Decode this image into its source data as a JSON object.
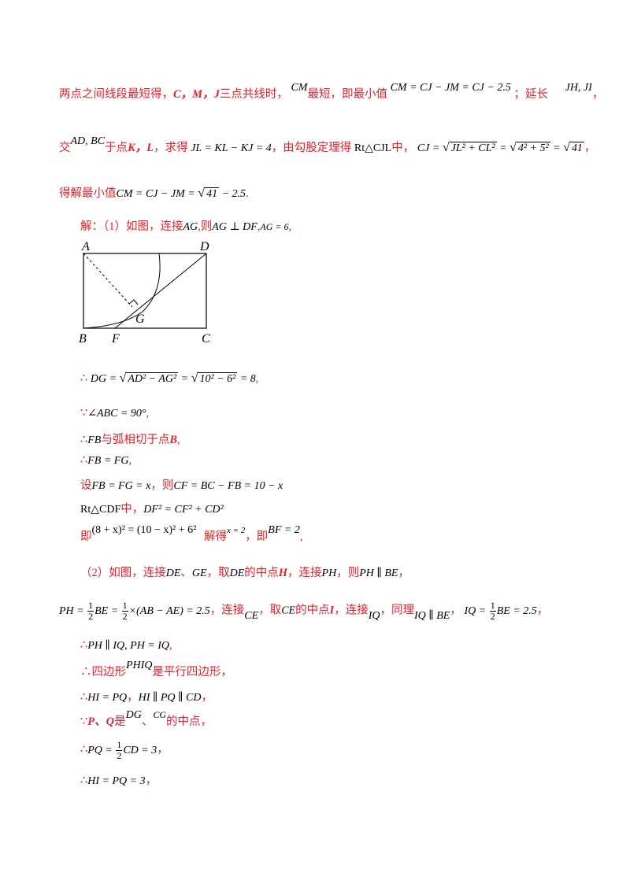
{
  "para1": {
    "line1": {
      "a": "两点之间线段最短得，",
      "b": "C，M，J",
      "c": "三点共线时，",
      "cm": "CM",
      "d": "最短，即最小值",
      "eq": "CM = CJ − JM = CJ − 2.5",
      "e": "；延长",
      "jh": "JH, JI",
      "f": "，"
    },
    "line2": {
      "a": "交",
      "adbc": "AD, BC",
      "b": "于点",
      "kl": "K，L",
      "c": "，求得",
      "eq1": "JL = KL − KJ = 4",
      "d": "，由勾股定理得",
      "rt": "Rt△CJL",
      "e": "中，",
      "eq2a": "CJ = ",
      "r1": "JL² + CL²",
      "eq2b": " = ",
      "r2": "4² + 5²",
      "eq2c": " = ",
      "r3": "41",
      "f": "，"
    },
    "line3": {
      "a": "得解最小值",
      "eq_a": "CM = CJ − JM = ",
      "r": "41",
      "eq_b": " − 2.5",
      "b": "."
    }
  },
  "solution": {
    "s1": {
      "a": "解：（1）如图，连接",
      "ag": "AG",
      "b": ",则",
      "perp": "AG ⊥ DF",
      "c": ",",
      "ag6": "AG = 6",
      "d": ","
    },
    "s2": {
      "therefore": "∴",
      "eq_a": "DG = ",
      "r1": "AD² − AG²",
      "eq_b": " = ",
      "r2": "10² − 6²",
      "eq_c": " = 8",
      "b": ","
    },
    "s3": {
      "because": "∵",
      "eq": "∠ABC = 90°",
      "b": ","
    },
    "s4": {
      "therefore": "∴",
      "fb": "FB",
      "a": "与弧相切于点",
      "b": "B",
      "c": ","
    },
    "s5": {
      "therefore": "∴",
      "eq": "FB = FG",
      "b": ","
    },
    "s6": {
      "a": "设",
      "eq1": "FB = FG = x",
      "b": "，则",
      "eq2": "CF = BC − FB = 10 − x"
    },
    "s7": {
      "rt": "Rt△CDF",
      "a": "中，",
      "eq": "DF² = CF² + CD²"
    },
    "s8": {
      "a": "即",
      "eq1": "(8 + x)² = (10 − x)² + 6²",
      "b": "解得",
      "x2": "x = 2",
      "c": "，即",
      "eq2": "BF = 2",
      "d": ","
    },
    "s9": {
      "a": "（2）如图，连接",
      "de": "DE",
      "b": "、",
      "ge": "GE",
      "c": "，取",
      "de2": "DE",
      "d": "的中点",
      "h": "H",
      "e": "，连接",
      "ph": "PH",
      "f": "，则",
      "eq": "PH ∥ BE",
      "g": "，"
    },
    "s10": {
      "eq1a": "PH = ",
      "num": "1",
      "den": "2",
      "eq1b": "BE = ",
      "num2": "1",
      "den2": "2",
      "eq1c": "×(AB − AE) = 2.5",
      "a": "，连接",
      "ce": "CE",
      "b": "，取",
      "ce2": "CE",
      "c": "的中点",
      "i": "I",
      "d": "，连接",
      "iq": "IQ",
      "e": "，同理",
      "iqbe": "IQ ∥ BE",
      "f": "，",
      "eq2a": "IQ = ",
      "num3": "1",
      "den3": "2",
      "eq2b": "BE = 2.5",
      "g": "，"
    },
    "s11": {
      "therefore": "∴",
      "eq": "PH ∥ IQ, PH = IQ",
      "b": ","
    },
    "s12": {
      "therefore": "∴",
      "a": "四边形",
      "phiq": "PHIQ",
      "b": "是平行四边形，"
    },
    "s13": {
      "therefore": "∴",
      "eq1": "HI = PQ",
      "a": "，",
      "eq2": "HI ∥ PQ ∥ CD",
      "b": "，"
    },
    "s14": {
      "because": "∵",
      "pq": "P、Q",
      "a": "是",
      "dg": "DG",
      "b": "、",
      "cg": "CG",
      "c": "的中点，"
    },
    "s15": {
      "therefore": "∴",
      "eq_a": "PQ = ",
      "num": "1",
      "den": "2",
      "eq_b": "CD = 3",
      "b": "，"
    },
    "s16": {
      "therefore": "∴",
      "eq": "HI = PQ = 3",
      "b": "，"
    }
  },
  "diagram": {
    "labels": {
      "a": "A",
      "d": "D",
      "b": "B",
      "f": "F",
      "c": "C",
      "g": "G"
    }
  }
}
